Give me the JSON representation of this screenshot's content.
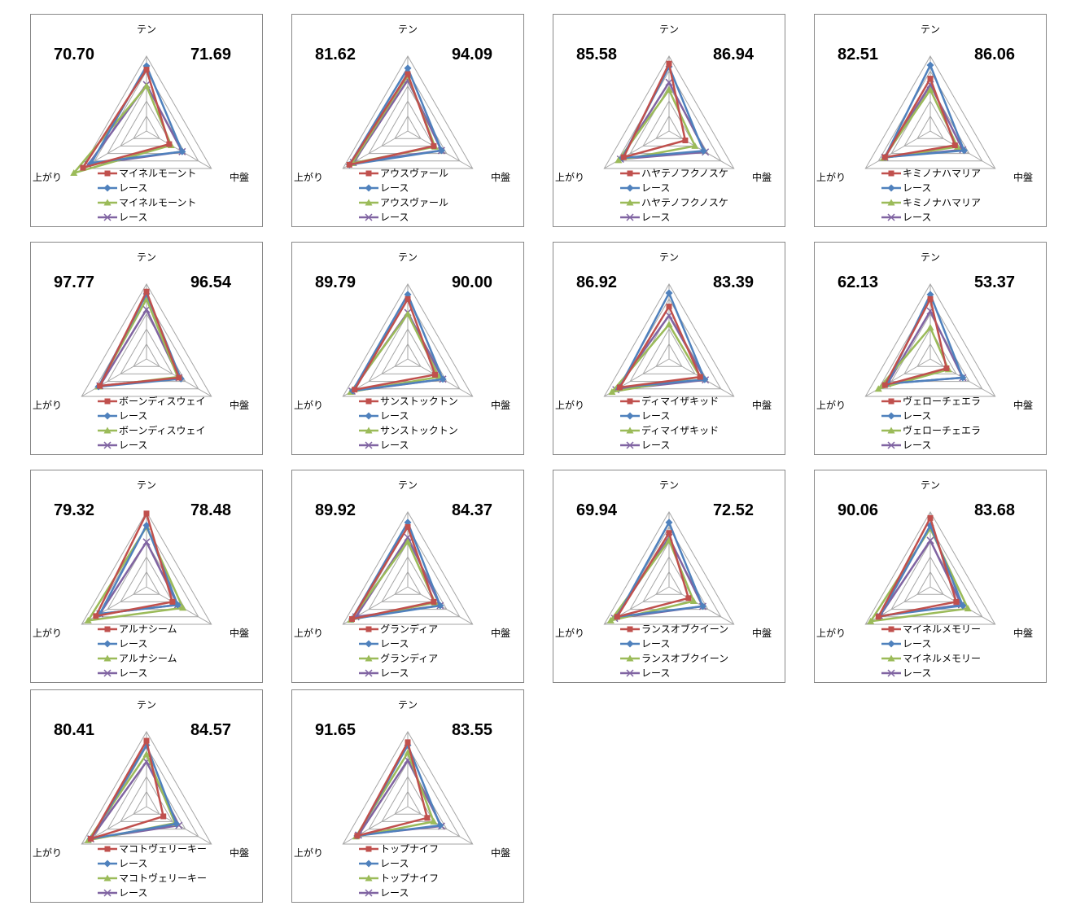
{
  "colors": {
    "s1": "#c0504d",
    "s2": "#4f81bd",
    "s3": "#9bbb59",
    "s4": "#8064a2",
    "grid": "#a6a6a6"
  },
  "axes": [
    "テン",
    "中盤",
    "上がり"
  ],
  "chart_data": [
    {
      "type": "radar",
      "left_value": "70.70",
      "right_value": "71.69",
      "axes": [
        "テン",
        "中盤",
        "上がり"
      ],
      "series": [
        {
          "name": "マイネルモーント",
          "values": [
            82,
            35,
            98
          ]
        },
        {
          "name": "レース",
          "values": [
            87,
            55,
            85
          ]
        },
        {
          "name": "マイネルモーント",
          "values": [
            60,
            38,
            112
          ]
        },
        {
          "name": "レース",
          "values": [
            62,
            55,
            90
          ]
        }
      ]
    },
    {
      "type": "radar",
      "left_value": "81.62",
      "right_value": "94.09",
      "axes": [
        "テン",
        "中盤",
        "上がり"
      ],
      "series": [
        {
          "name": "アウスヴァール",
          "values": [
            76,
            40,
            90
          ]
        },
        {
          "name": "レース",
          "values": [
            84,
            52,
            90
          ]
        },
        {
          "name": "アウスヴァール",
          "values": [
            74,
            42,
            86
          ]
        },
        {
          "name": "レース",
          "values": [
            68,
            52,
            84
          ]
        }
      ]
    },
    {
      "type": "radar",
      "left_value": "85.58",
      "right_value": "86.94",
      "axes": [
        "テン",
        "中盤",
        "上がり"
      ],
      "series": [
        {
          "name": "ハヤテノフクノスケ",
          "values": [
            90,
            25,
            70
          ]
        },
        {
          "name": "レース",
          "values": [
            86,
            53,
            72
          ]
        },
        {
          "name": "ハヤテノフクノスケ",
          "values": [
            55,
            40,
            78
          ]
        },
        {
          "name": "レース",
          "values": [
            65,
            56,
            75
          ]
        }
      ]
    },
    {
      "type": "radar",
      "left_value": "82.51",
      "right_value": "86.06",
      "axes": [
        "テン",
        "中盤",
        "上がり"
      ],
      "series": [
        {
          "name": "キミノナハマリア",
          "values": [
            70,
            38,
            70
          ]
        },
        {
          "name": "レース",
          "values": [
            88,
            52,
            70
          ]
        },
        {
          "name": "キミノナハマリア",
          "values": [
            55,
            42,
            72
          ]
        },
        {
          "name": "レース",
          "values": [
            62,
            50,
            70
          ]
        }
      ]
    },
    {
      "type": "radar",
      "left_value": "97.77",
      "right_value": "96.54",
      "axes": [
        "テン",
        "中盤",
        "上がり"
      ],
      "series": [
        {
          "name": "ボーンディスウェイ",
          "values": [
            90,
            50,
            72
          ]
        },
        {
          "name": "レース",
          "values": [
            87,
            53,
            74
          ]
        },
        {
          "name": "ボーンディスウェイ",
          "values": [
            80,
            48,
            74
          ]
        },
        {
          "name": "レース",
          "values": [
            66,
            50,
            72
          ]
        }
      ]
    },
    {
      "type": "radar",
      "left_value": "89.79",
      "right_value": "90.00",
      "axes": [
        "テン",
        "中盤",
        "上がり"
      ],
      "series": [
        {
          "name": "サンストックトン",
          "values": [
            80,
            42,
            82
          ]
        },
        {
          "name": "レース",
          "values": [
            86,
            54,
            85
          ]
        },
        {
          "name": "サンストックトン",
          "values": [
            60,
            48,
            88
          ]
        },
        {
          "name": "レース",
          "values": [
            62,
            54,
            86
          ]
        }
      ]
    },
    {
      "type": "radar",
      "left_value": "86.92",
      "right_value": "83.39",
      "axes": [
        "テン",
        "中盤",
        "上がり"
      ],
      "series": [
        {
          "name": "ディマイザキッド",
          "values": [
            70,
            48,
            76
          ]
        },
        {
          "name": "レース",
          "values": [
            88,
            55,
            76
          ]
        },
        {
          "name": "ディマイザキッド",
          "values": [
            46,
            48,
            88
          ]
        },
        {
          "name": "レース",
          "values": [
            58,
            56,
            82
          ]
        }
      ]
    },
    {
      "type": "radar",
      "left_value": "62.13",
      "right_value": "53.37",
      "axes": [
        "テン",
        "中盤",
        "上がり"
      ],
      "series": [
        {
          "name": "ヴェローチェエラ",
          "values": [
            80,
            25,
            70
          ]
        },
        {
          "name": "レース",
          "values": [
            86,
            50,
            66
          ]
        },
        {
          "name": "ヴェローチェエラ",
          "values": [
            42,
            28,
            80
          ]
        },
        {
          "name": "レース",
          "values": [
            64,
            50,
            66
          ]
        }
      ]
    },
    {
      "type": "radar",
      "left_value": "79.32",
      "right_value": "78.48",
      "axes": [
        "テン",
        "中盤",
        "上がり"
      ],
      "series": [
        {
          "name": "アルナシーム",
          "values": [
            98,
            40,
            78
          ]
        },
        {
          "name": "レース",
          "values": [
            82,
            48,
            72
          ]
        },
        {
          "name": "アルナシーム",
          "values": [
            80,
            56,
            90
          ]
        },
        {
          "name": "レース",
          "values": [
            60,
            48,
            72
          ]
        }
      ]
    },
    {
      "type": "radar",
      "left_value": "89.92",
      "right_value": "84.37",
      "axes": [
        "テン",
        "中盤",
        "上がり"
      ],
      "series": [
        {
          "name": "グランディア",
          "values": [
            80,
            40,
            86
          ]
        },
        {
          "name": "レース",
          "values": [
            86,
            50,
            86
          ]
        },
        {
          "name": "グランディア",
          "values": [
            60,
            42,
            88
          ]
        },
        {
          "name": "レース",
          "values": [
            66,
            50,
            80
          ]
        }
      ]
    },
    {
      "type": "radar",
      "left_value": "69.94",
      "right_value": "72.52",
      "axes": [
        "テン",
        "中盤",
        "上がり"
      ],
      "series": [
        {
          "name": "ランスオブクイーン",
          "values": [
            72,
            30,
            80
          ]
        },
        {
          "name": "レース",
          "values": [
            86,
            52,
            80
          ]
        },
        {
          "name": "ランスオブクイーン",
          "values": [
            62,
            38,
            90
          ]
        },
        {
          "name": "レース",
          "values": [
            66,
            52,
            84
          ]
        }
      ]
    },
    {
      "type": "radar",
      "left_value": "90.06",
      "right_value": "83.68",
      "axes": [
        "テン",
        "中盤",
        "上がり"
      ],
      "series": [
        {
          "name": "マイネルメモリー",
          "values": [
            92,
            40,
            80
          ]
        },
        {
          "name": "レース",
          "values": [
            82,
            50,
            78
          ]
        },
        {
          "name": "マイネルメモリー",
          "values": [
            78,
            58,
            92
          ]
        },
        {
          "name": "レース",
          "values": [
            62,
            48,
            78
          ]
        }
      ]
    },
    {
      "type": "radar",
      "left_value": "80.41",
      "right_value": "84.57",
      "axes": [
        "テン",
        "中盤",
        "上がり"
      ],
      "series": [
        {
          "name": "マコトヴェリーキー",
          "values": [
            88,
            26,
            86
          ]
        },
        {
          "name": "レース",
          "values": [
            82,
            46,
            86
          ]
        },
        {
          "name": "マコトヴェリーキー",
          "values": [
            70,
            44,
            90
          ]
        },
        {
          "name": "レース",
          "values": [
            60,
            50,
            86
          ]
        }
      ]
    },
    {
      "type": "radar",
      "left_value": "91.65",
      "right_value": "83.55",
      "axes": [
        "テン",
        "中盤",
        "上がり"
      ],
      "series": [
        {
          "name": "トップナイフ",
          "values": [
            86,
            30,
            78
          ]
        },
        {
          "name": "レース",
          "values": [
            82,
            50,
            78
          ]
        },
        {
          "name": "トップナイフ",
          "values": [
            72,
            40,
            80
          ]
        },
        {
          "name": "レース",
          "values": [
            62,
            52,
            76
          ]
        }
      ]
    }
  ]
}
